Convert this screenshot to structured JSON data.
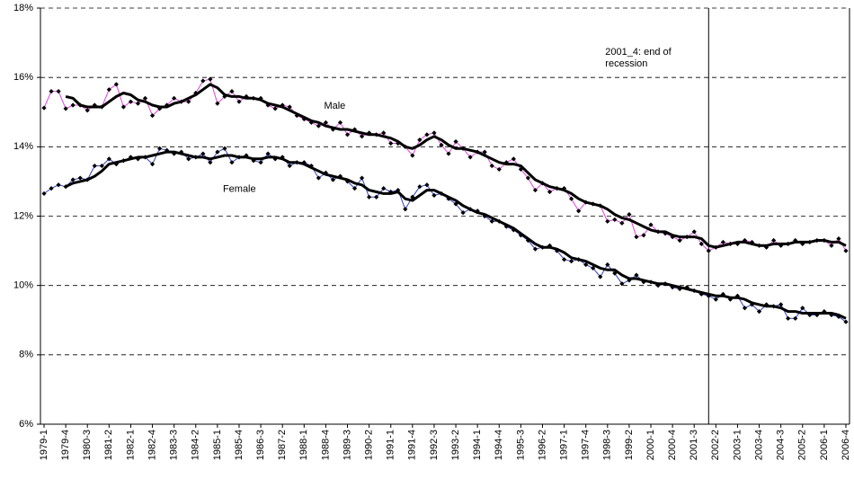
{
  "chart_data": {
    "type": "line",
    "categories": [
      "1979-1",
      null,
      null,
      "1979-4",
      null,
      null,
      "1980-3",
      null,
      null,
      "1981-2",
      null,
      null,
      "1982-1",
      null,
      null,
      "1982-4",
      null,
      null,
      "1983-3",
      null,
      null,
      "1984-2",
      null,
      null,
      "1985-1",
      null,
      null,
      "1985-4",
      null,
      null,
      "1986-3",
      null,
      null,
      "1987-2",
      null,
      null,
      "1988-1",
      null,
      null,
      "1988-4",
      null,
      null,
      "1989-3",
      null,
      null,
      "1990-2",
      null,
      null,
      "1991-1",
      null,
      null,
      "1991-4",
      null,
      null,
      "1992-3",
      null,
      null,
      "1993-2",
      null,
      null,
      "1994-1",
      null,
      null,
      "1994-4",
      null,
      null,
      "1995-3",
      null,
      null,
      "1996-2",
      null,
      null,
      "1997-1",
      null,
      null,
      "1997-4",
      null,
      null,
      "1998-3",
      null,
      null,
      "1999-2",
      null,
      null,
      "2000-1",
      null,
      null,
      "2000-4",
      null,
      null,
      "2001-3",
      null,
      null,
      "2002-2",
      null,
      null,
      "2003-1",
      null,
      null,
      "2003-4",
      null,
      null,
      "2004-3",
      null,
      null,
      "2005-2",
      null,
      null,
      "2006-1",
      null,
      null,
      "2006-4"
    ],
    "series": [
      {
        "name": "Male",
        "color": "#e040e0",
        "markers": true,
        "width": 1,
        "values": [
          15.12,
          15.6,
          15.6,
          15.1,
          15.2,
          15.2,
          15.05,
          15.2,
          15.15,
          15.65,
          15.8,
          15.15,
          15.3,
          15.25,
          15.4,
          14.9,
          15.1,
          15.2,
          15.4,
          15.3,
          15.3,
          15.55,
          15.9,
          15.95,
          15.25,
          15.45,
          15.6,
          15.3,
          15.45,
          15.4,
          15.4,
          15.2,
          15.1,
          15.2,
          15.15,
          14.9,
          14.8,
          14.7,
          14.6,
          14.7,
          14.5,
          14.7,
          14.35,
          14.5,
          14.3,
          14.4,
          14.35,
          14.4,
          14.1,
          14.1,
          14.0,
          13.75,
          14.2,
          14.35,
          14.4,
          14.05,
          13.8,
          14.15,
          13.95,
          13.7,
          13.85,
          13.85,
          13.45,
          13.35,
          13.55,
          13.65,
          13.35,
          13.1,
          12.75,
          12.95,
          12.7,
          12.8,
          12.8,
          12.5,
          12.15,
          12.4,
          12.35,
          12.3,
          11.85,
          11.9,
          11.8,
          12.05,
          11.4,
          11.45,
          11.75,
          11.55,
          11.5,
          11.4,
          11.3,
          11.4,
          11.55,
          11.2,
          11.0,
          11.1,
          11.25,
          11.2,
          11.2,
          11.3,
          11.25,
          11.15,
          11.1,
          11.3,
          11.15,
          11.2,
          11.3,
          11.2,
          11.25,
          11.3,
          11.3,
          11.15,
          11.35,
          11.0
        ]
      },
      {
        "color": "#000000",
        "markers": false,
        "width": 3,
        "values": [
          null,
          null,
          null,
          15.45,
          15.4,
          15.2,
          15.15,
          15.15,
          15.15,
          15.3,
          15.45,
          15.55,
          15.5,
          15.35,
          15.3,
          15.2,
          15.15,
          15.15,
          15.25,
          15.3,
          15.4,
          15.5,
          15.65,
          15.8,
          15.7,
          15.5,
          15.45,
          15.45,
          15.4,
          15.4,
          15.35,
          15.25,
          15.2,
          15.15,
          15.05,
          14.95,
          14.85,
          14.75,
          14.7,
          14.6,
          14.55,
          14.5,
          14.5,
          14.45,
          14.4,
          14.35,
          14.35,
          14.3,
          14.25,
          14.15,
          14.0,
          13.95,
          14.05,
          14.2,
          14.3,
          14.2,
          14.05,
          13.95,
          13.95,
          13.9,
          13.85,
          13.75,
          13.65,
          13.55,
          13.5,
          13.5,
          13.45,
          13.25,
          13.05,
          12.95,
          12.85,
          12.8,
          12.75,
          12.65,
          12.5,
          12.4,
          12.35,
          12.3,
          12.2,
          12.05,
          11.95,
          11.9,
          11.8,
          11.7,
          11.6,
          11.55,
          11.55,
          11.45,
          11.4,
          11.4,
          11.4,
          11.35,
          11.15,
          11.1,
          11.15,
          11.2,
          11.25,
          11.25,
          11.2,
          11.15,
          11.15,
          11.2,
          11.2,
          11.2,
          11.25,
          11.25,
          11.25,
          11.3,
          11.3,
          11.25,
          11.25,
          11.15
        ]
      },
      {
        "name": "Female",
        "color": "#3040c0",
        "markers": true,
        "width": 1,
        "values": [
          12.65,
          12.8,
          12.9,
          12.85,
          13.05,
          13.1,
          13.05,
          13.45,
          13.45,
          13.65,
          13.5,
          13.6,
          13.7,
          13.65,
          13.7,
          13.5,
          13.95,
          13.9,
          13.8,
          13.85,
          13.65,
          13.7,
          13.8,
          13.55,
          13.85,
          13.95,
          13.55,
          13.7,
          13.75,
          13.6,
          13.55,
          13.8,
          13.65,
          13.7,
          13.45,
          13.55,
          13.55,
          13.45,
          13.1,
          13.25,
          13.05,
          13.15,
          13.0,
          12.8,
          13.1,
          12.55,
          12.55,
          12.8,
          12.7,
          12.75,
          12.2,
          12.55,
          12.85,
          12.9,
          12.6,
          12.65,
          12.5,
          12.35,
          12.1,
          12.2,
          12.15,
          12.0,
          11.85,
          11.85,
          11.7,
          11.6,
          11.45,
          11.3,
          11.05,
          11.1,
          11.15,
          11.0,
          10.75,
          10.7,
          10.75,
          10.6,
          10.5,
          10.25,
          10.6,
          10.35,
          10.05,
          10.15,
          10.3,
          10.1,
          10.1,
          10.0,
          10.05,
          9.95,
          9.9,
          9.95,
          9.85,
          9.75,
          9.7,
          9.6,
          9.75,
          9.6,
          9.7,
          9.35,
          9.45,
          9.25,
          9.45,
          9.4,
          9.45,
          9.05,
          9.05,
          9.35,
          9.15,
          9.15,
          9.25,
          9.15,
          9.1,
          8.95
        ]
      },
      {
        "color": "#000000",
        "markers": false,
        "width": 3,
        "values": [
          null,
          null,
          null,
          12.85,
          12.95,
          13.0,
          13.05,
          13.15,
          13.3,
          13.5,
          13.55,
          13.6,
          13.65,
          13.7,
          13.7,
          13.75,
          13.8,
          13.85,
          13.85,
          13.8,
          13.75,
          13.7,
          13.7,
          13.65,
          13.7,
          13.75,
          13.75,
          13.7,
          13.7,
          13.65,
          13.65,
          13.7,
          13.7,
          13.65,
          13.55,
          13.55,
          13.5,
          13.4,
          13.3,
          13.2,
          13.15,
          13.1,
          13.05,
          12.95,
          12.9,
          12.75,
          12.7,
          12.65,
          12.65,
          12.7,
          12.5,
          12.45,
          12.6,
          12.75,
          12.75,
          12.65,
          12.55,
          12.45,
          12.3,
          12.2,
          12.1,
          12.05,
          11.95,
          11.85,
          11.75,
          11.65,
          11.5,
          11.35,
          11.2,
          11.1,
          11.1,
          11.05,
          10.95,
          10.8,
          10.75,
          10.7,
          10.6,
          10.5,
          10.45,
          10.45,
          10.3,
          10.2,
          10.2,
          10.15,
          10.1,
          10.05,
          10.05,
          10.0,
          9.95,
          9.9,
          9.85,
          9.8,
          9.75,
          9.7,
          9.7,
          9.65,
          9.65,
          9.6,
          9.5,
          9.45,
          9.4,
          9.4,
          9.35,
          9.25,
          9.25,
          9.2,
          9.2,
          9.2,
          9.2,
          9.2,
          9.15,
          9.05
        ]
      }
    ],
    "ylim": [
      6,
      18
    ],
    "yticks": [
      {
        "value": 6,
        "label": "6%"
      },
      {
        "value": 8,
        "label": "8%"
      },
      {
        "value": 10,
        "label": "10%"
      },
      {
        "value": 12,
        "label": "12%"
      },
      {
        "value": 14,
        "label": "14%"
      },
      {
        "value": 16,
        "label": "16%"
      },
      {
        "value": 18,
        "label": "18%"
      }
    ],
    "grid": true,
    "annotations": [
      {
        "text": "2001_4: end of recession",
        "category_index": 92
      }
    ]
  }
}
